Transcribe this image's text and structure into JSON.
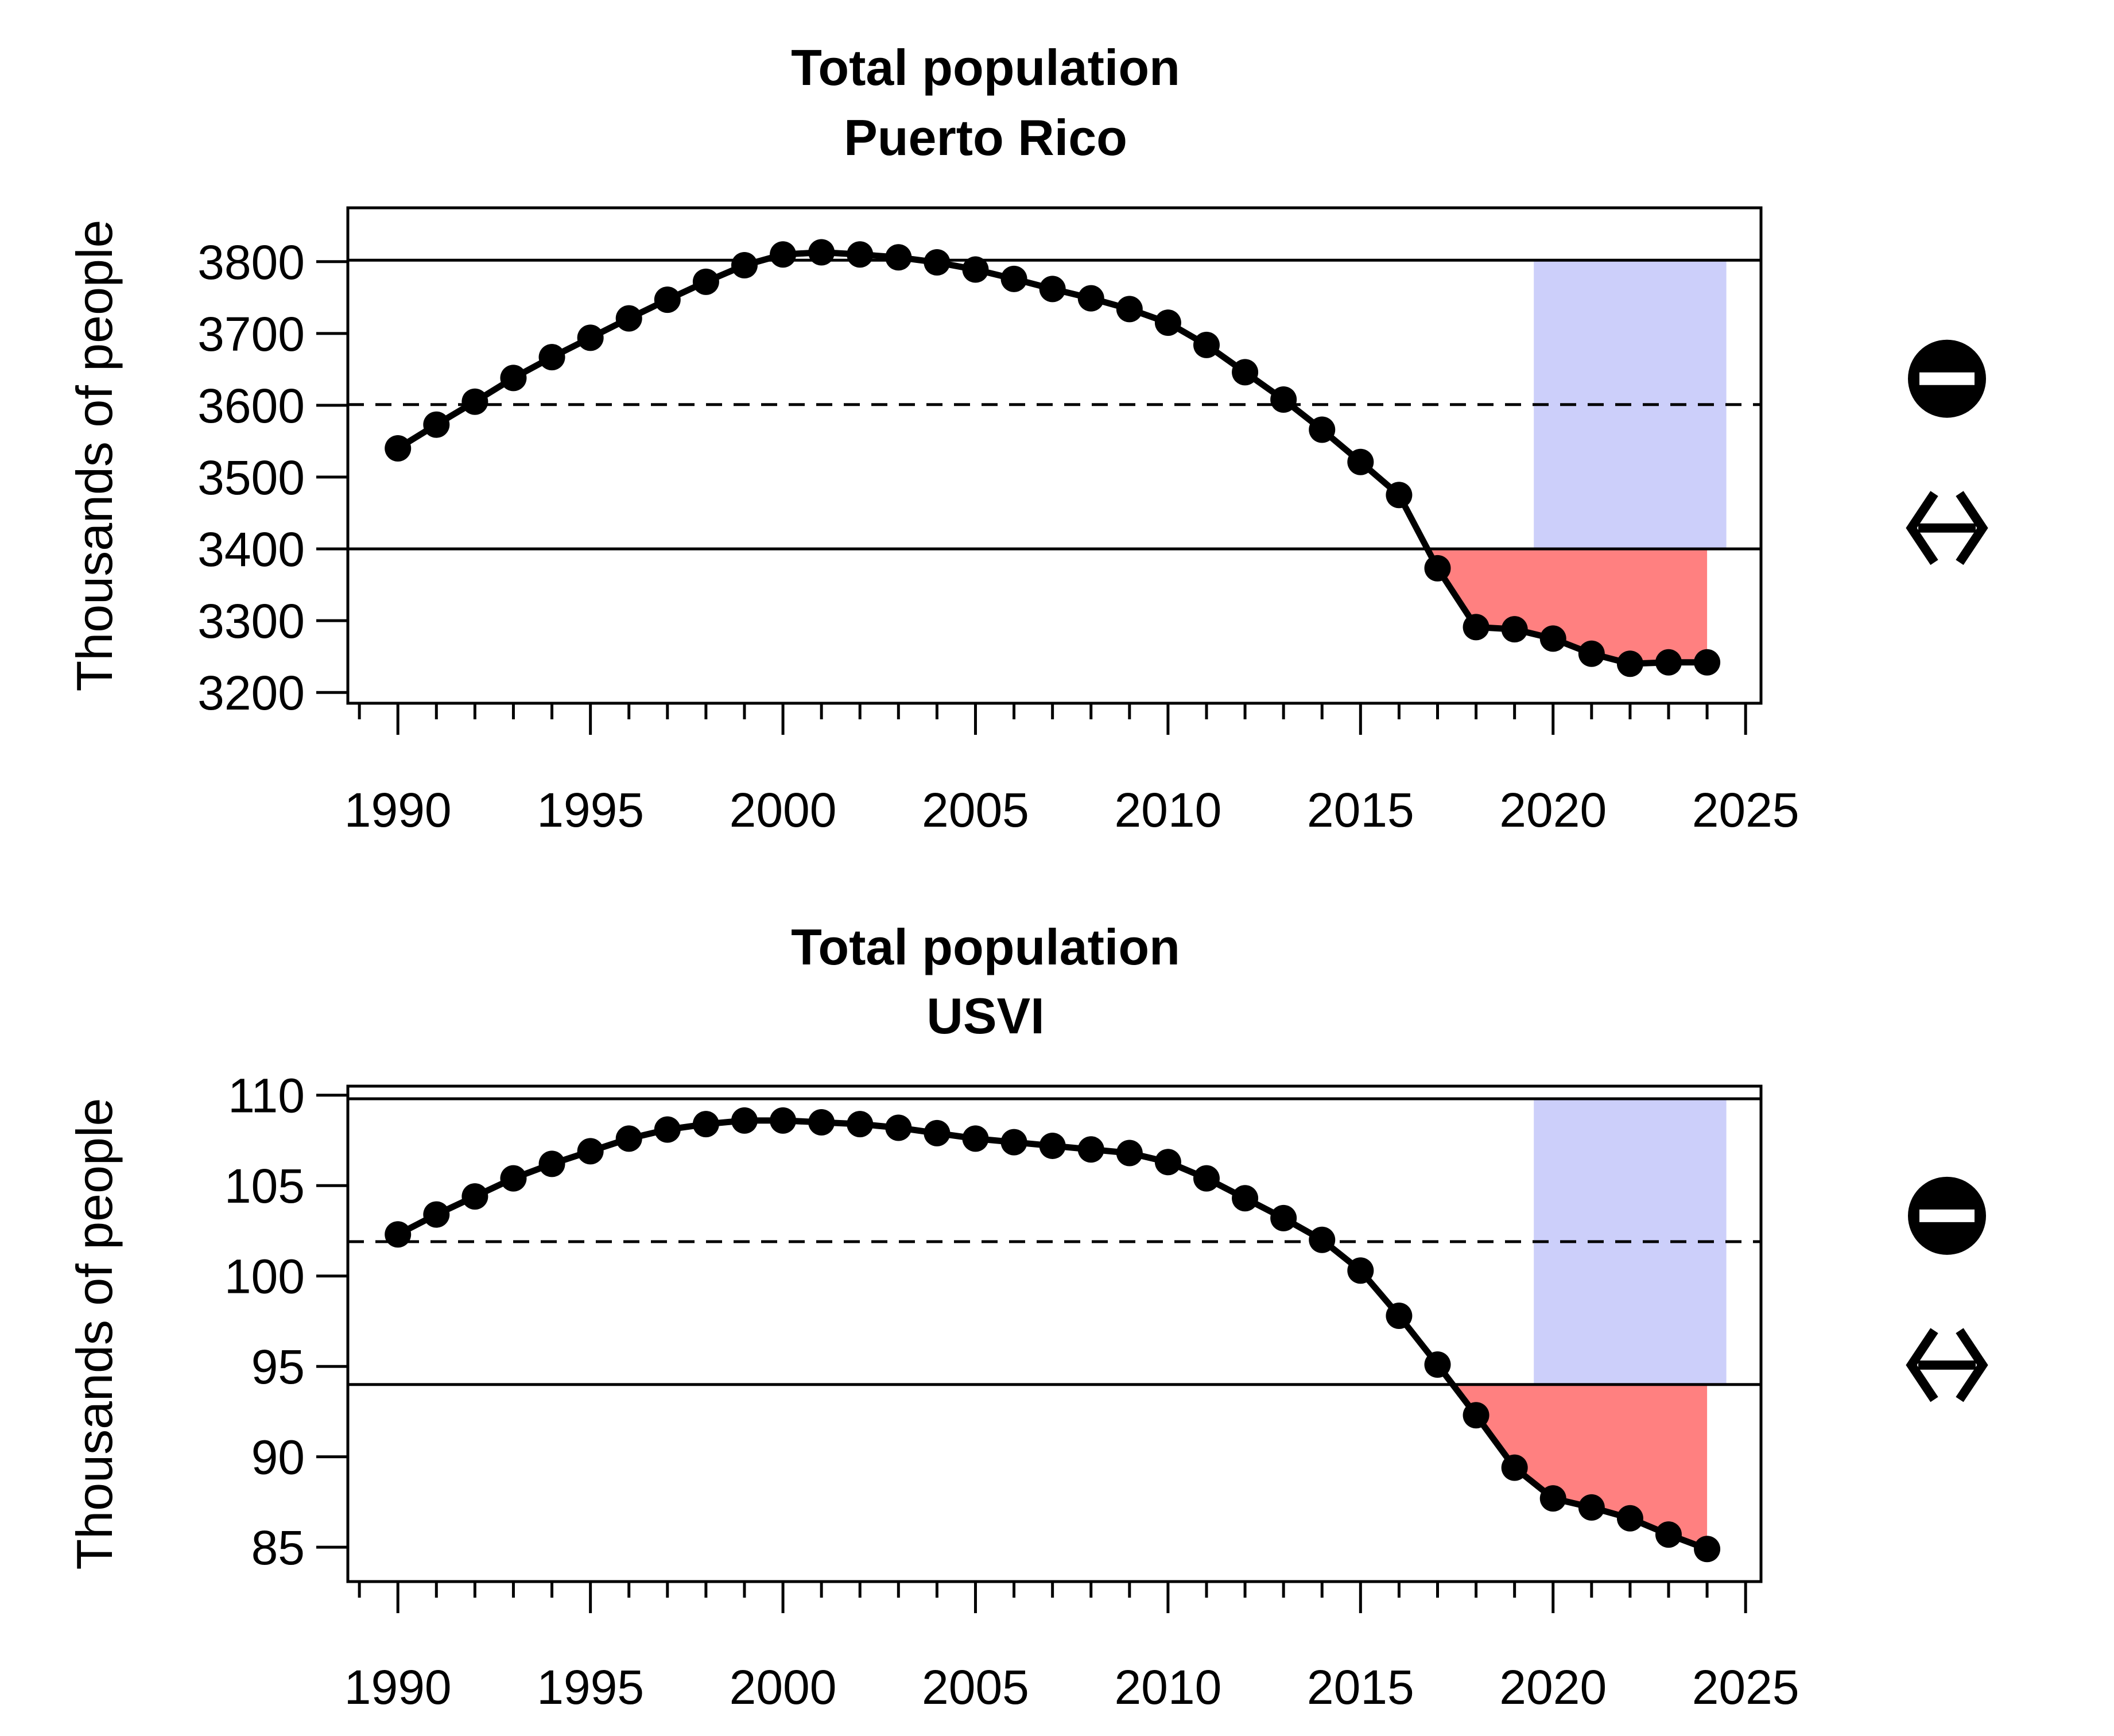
{
  "chart_data": [
    {
      "type": "line",
      "title": "Total population",
      "subtitle": "Puerto Rico",
      "ylabel": "Thousands of people",
      "xlim": [
        1988.7,
        2025.4
      ],
      "ylim": [
        3185,
        3875
      ],
      "xticks": [
        1990,
        1995,
        2000,
        2005,
        2010,
        2015,
        2020,
        2025
      ],
      "yticks": [
        3200,
        3300,
        3400,
        3500,
        3600,
        3700,
        3800
      ],
      "x": [
        1990,
        1991,
        1992,
        1993,
        1994,
        1995,
        1996,
        1997,
        1998,
        1999,
        2000,
        2001,
        2002,
        2003,
        2004,
        2005,
        2006,
        2007,
        2008,
        2009,
        2010,
        2011,
        2012,
        2013,
        2014,
        2015,
        2016,
        2017,
        2018,
        2019,
        2020,
        2021,
        2022,
        2023,
        2024
      ],
      "values": [
        3540,
        3573,
        3605,
        3638,
        3667,
        3694,
        3721,
        3747,
        3772,
        3795,
        3810,
        3813,
        3810,
        3806,
        3799,
        3789,
        3776,
        3762,
        3749,
        3734,
        3715,
        3684,
        3646,
        3608,
        3566,
        3521,
        3475,
        3373,
        3291,
        3288,
        3275,
        3254,
        3240,
        3242,
        3242
      ],
      "upper_threshold": 3802,
      "lower_threshold": 3400,
      "mean": 3601,
      "shade_range": [
        2019.5,
        2024.5
      ],
      "colors": {
        "line": "#000000",
        "above": "#cccffa",
        "below": "#ff8080"
      },
      "indicators": [
        "circle-minus-icon",
        "double-arrow-icon"
      ]
    },
    {
      "type": "line",
      "title": "Total population",
      "subtitle": "USVI",
      "ylabel": "Thousands of people",
      "xlim": [
        1988.7,
        2025.4
      ],
      "ylim": [
        83.1,
        110.5
      ],
      "xticks": [
        1990,
        1995,
        2000,
        2005,
        2010,
        2015,
        2020,
        2025
      ],
      "yticks": [
        85,
        90,
        95,
        100,
        105,
        110
      ],
      "x": [
        1990,
        1991,
        1992,
        1993,
        1994,
        1995,
        1996,
        1997,
        1998,
        1999,
        2000,
        2001,
        2002,
        2003,
        2004,
        2005,
        2006,
        2007,
        2008,
        2009,
        2010,
        2011,
        2012,
        2013,
        2014,
        2015,
        2016,
        2017,
        2018,
        2019,
        2020,
        2021,
        2022,
        2023,
        2024
      ],
      "values": [
        102.3,
        103.4,
        104.4,
        105.4,
        106.2,
        106.9,
        107.6,
        108.1,
        108.4,
        108.6,
        108.6,
        108.5,
        108.4,
        108.2,
        107.9,
        107.6,
        107.4,
        107.2,
        107.0,
        106.8,
        106.3,
        105.4,
        104.3,
        103.2,
        102.0,
        100.3,
        97.8,
        95.1,
        92.3,
        89.4,
        87.7,
        87.2,
        86.6,
        85.7,
        84.9
      ],
      "upper_threshold": 109.8,
      "lower_threshold": 94.0,
      "mean": 101.9,
      "shade_range": [
        2019.5,
        2024.5
      ],
      "colors": {
        "line": "#000000",
        "above": "#cccffa",
        "below": "#ff8080"
      },
      "indicators": [
        "circle-minus-icon",
        "double-arrow-icon"
      ]
    }
  ]
}
